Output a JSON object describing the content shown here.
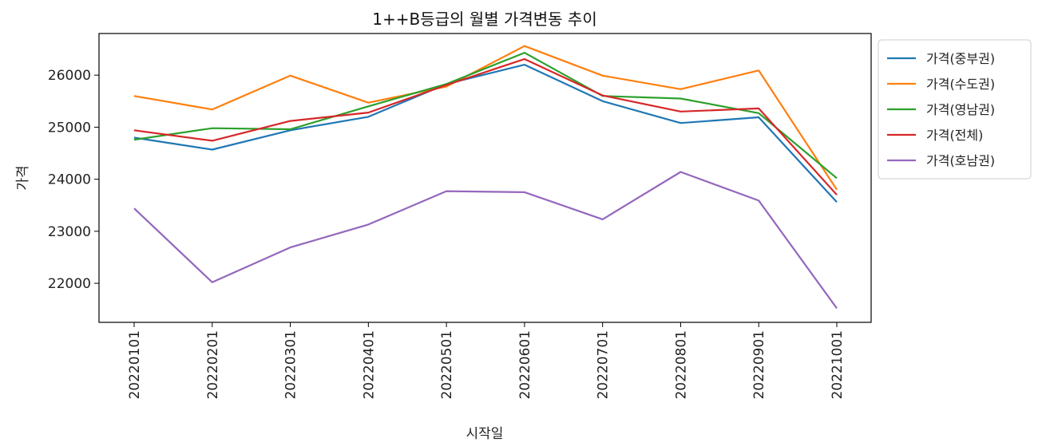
{
  "chart_data": {
    "type": "line",
    "title": "1++B등급의 월별 가격변동 추이",
    "xlabel": "시작일",
    "ylabel": "가격",
    "categories": [
      "20220101",
      "20220201",
      "20220301",
      "20220401",
      "20220501",
      "20220601",
      "20220701",
      "20220801",
      "20220901",
      "20221001"
    ],
    "yticks": [
      22000,
      23000,
      24000,
      25000,
      26000
    ],
    "ylim": [
      21250,
      26800
    ],
    "grid": false,
    "legend_position": "outside-top-right",
    "series": [
      {
        "name": "가격(중부권)",
        "color": "#1f77b4",
        "values": [
          24800,
          24570,
          24940,
          25200,
          25830,
          26200,
          25500,
          25080,
          25190,
          23560
        ]
      },
      {
        "name": "가격(수도권)",
        "color": "#ff7f0e",
        "values": [
          25600,
          25340,
          25990,
          25470,
          25780,
          26560,
          25990,
          25730,
          26090,
          23800
        ]
      },
      {
        "name": "가격(영남권)",
        "color": "#2ca02c",
        "values": [
          24760,
          24980,
          24960,
          25400,
          25830,
          26430,
          25600,
          25550,
          25270,
          24020
        ]
      },
      {
        "name": "가격(전체)",
        "color": "#d62728",
        "values": [
          24940,
          24740,
          25120,
          25280,
          25810,
          26310,
          25610,
          25300,
          25360,
          23700
        ]
      },
      {
        "name": "가격(호남권)",
        "color": "#9467bd",
        "values": [
          23440,
          22020,
          22690,
          23130,
          23770,
          23750,
          23230,
          24140,
          23590,
          21520
        ]
      }
    ]
  }
}
